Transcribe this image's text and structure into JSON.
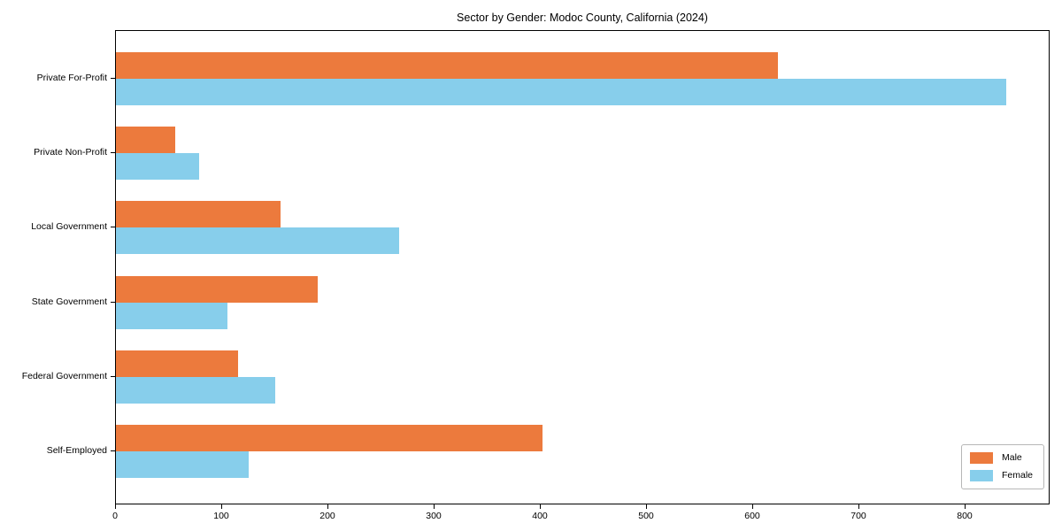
{
  "chart_data": {
    "type": "bar",
    "orientation": "horizontal",
    "title": "Sector by Gender: Modoc County, California (2024)",
    "categories": [
      "Private For-Profit",
      "Private Non-Profit",
      "Local Government",
      "State Government",
      "Federal Government",
      "Self-Employed"
    ],
    "series": [
      {
        "name": "Male",
        "color": "#EC7A3D",
        "values": [
          623,
          56,
          155,
          190,
          115,
          402
        ]
      },
      {
        "name": "Female",
        "color": "#87CEEB",
        "values": [
          838,
          78,
          267,
          105,
          150,
          125
        ]
      }
    ],
    "xlabel": "",
    "ylabel": "",
    "xlim": [
      0,
      880
    ],
    "xticks": [
      0,
      100,
      200,
      300,
      400,
      500,
      600,
      700,
      800
    ],
    "grid": false,
    "legend_position": "lower right"
  }
}
